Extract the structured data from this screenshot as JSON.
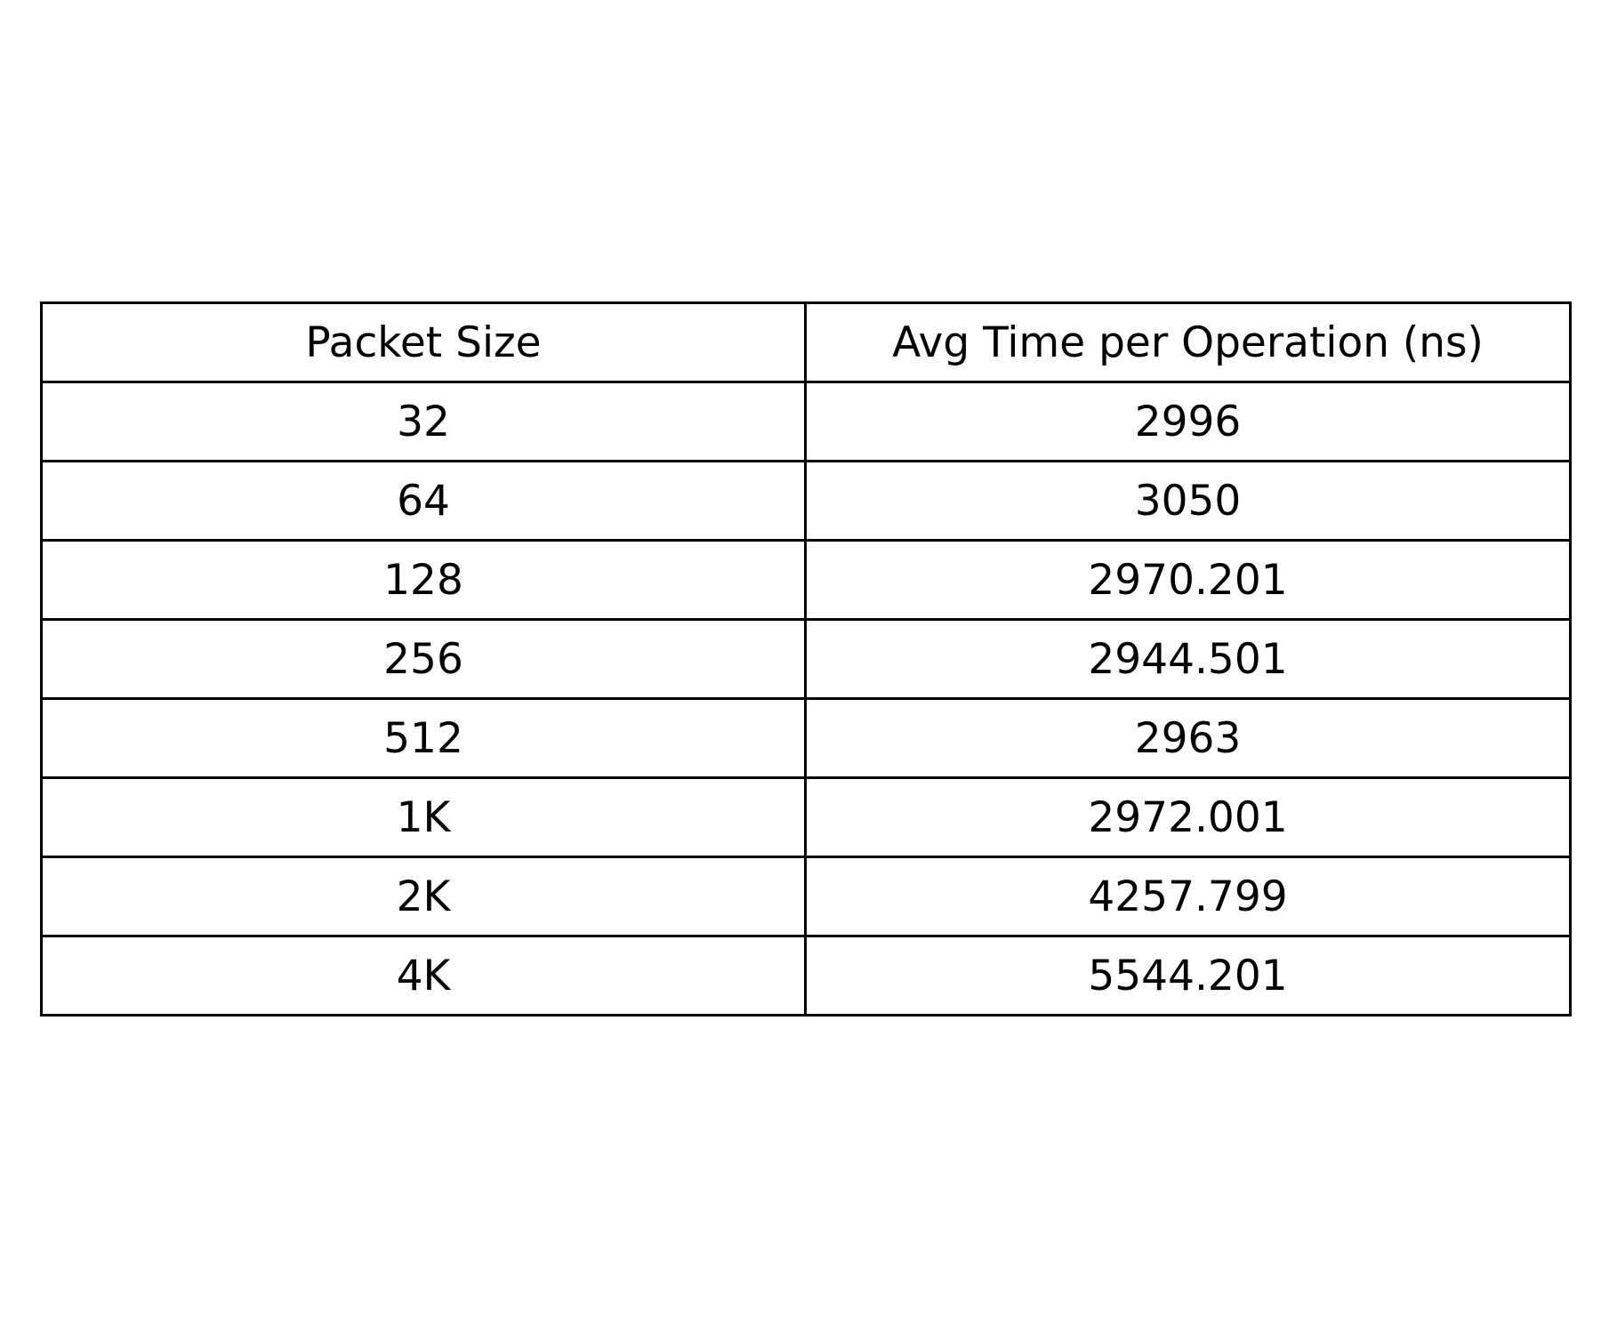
{
  "chart_data": {
    "type": "table",
    "columns": [
      "Packet Size",
      "Avg Time per Operation (ns)"
    ],
    "rows": [
      [
        "32",
        "2996"
      ],
      [
        "64",
        "3050"
      ],
      [
        "128",
        "2970.201"
      ],
      [
        "256",
        "2944.501"
      ],
      [
        "512",
        "2963"
      ],
      [
        "1K",
        "2972.001"
      ],
      [
        "2K",
        "4257.799"
      ],
      [
        "4K",
        "5544.201"
      ]
    ]
  }
}
